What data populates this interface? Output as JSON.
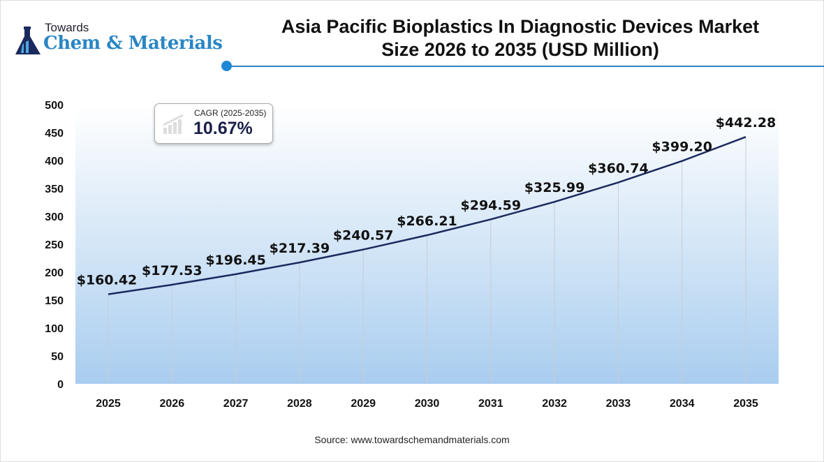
{
  "logo": {
    "towards": "Towards",
    "name": "Chem & Materials"
  },
  "title_line1": "Asia Pacific Bioplastics In Diagnostic Devices Market",
  "title_line2": "Size 2026 to 2035 (USD Million)",
  "cagr": {
    "label": "CAGR (2025-2035)",
    "value": "10.67%"
  },
  "source": "Source: www.towardschemandmaterials.com",
  "colors": {
    "line": "#1b2a5e",
    "accent": "#2a86c4",
    "fill_top": "#ffffff",
    "fill_bottom": "#a9cdef"
  },
  "chart_data": {
    "type": "area",
    "categories": [
      "2025",
      "2026",
      "2027",
      "2028",
      "2029",
      "2030",
      "2031",
      "2032",
      "2033",
      "2034",
      "2035"
    ],
    "values": [
      160.42,
      177.53,
      196.45,
      217.39,
      240.57,
      266.21,
      294.59,
      325.99,
      360.74,
      399.2,
      442.28
    ],
    "data_labels": [
      "$160.42",
      "$177.53",
      "$196.45",
      "$217.39",
      "$240.57",
      "$266.21",
      "$294.59",
      "$325.99",
      "$360.74",
      "$399.20",
      "$442.28"
    ],
    "yticks": [
      0,
      50,
      100,
      150,
      200,
      250,
      300,
      350,
      400,
      450,
      500
    ],
    "ylim": [
      0,
      500
    ],
    "grid": false,
    "legend": "none"
  }
}
